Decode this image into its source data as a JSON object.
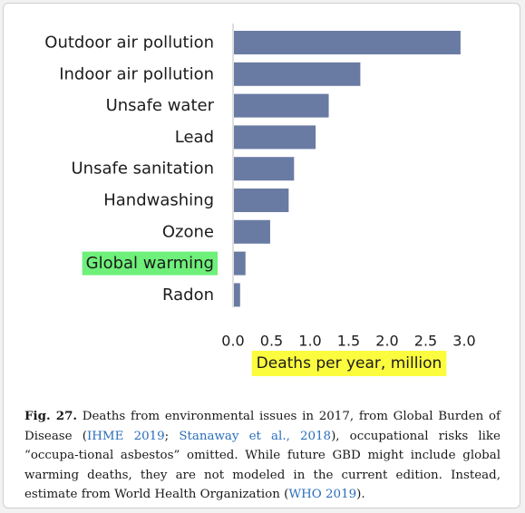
{
  "colors": {
    "bar": "#6a7ba3",
    "highlight_green": "#6ef07a",
    "highlight_yellow": "#fcfc3f",
    "link": "#2a6ebb"
  },
  "chart_data": {
    "type": "bar",
    "orientation": "horizontal",
    "categories": [
      "Outdoor air pollution",
      "Indoor air pollution",
      "Unsafe water",
      "Lead",
      "Unsafe sanitation",
      "Handwashing",
      "Ozone",
      "Global warming",
      "Radon"
    ],
    "values": [
      2.94,
      1.64,
      1.23,
      1.06,
      0.78,
      0.71,
      0.47,
      0.15,
      0.08
    ],
    "highlighted_category": "Global warming",
    "xticks": [
      "0.0",
      "0.5",
      "1.0",
      "1.5",
      "2.0",
      "2.5",
      "3.0"
    ],
    "xlim": [
      0,
      3.0
    ],
    "xlabel": "Deaths per year, million",
    "grid": false
  },
  "caption": {
    "label": "Fig. 27.",
    "text_1": " Deaths from environmental issues in 2017, from Global Burden of Disease (",
    "ref_1": "IHME 2019",
    "sep_1": "; ",
    "ref_2": "Stanaway et al., 2018",
    "text_2": "), occupational risks like “occupa-tional asbestos” omitted. While future GBD might include global warming deaths, they are not modeled in the current edition. Instead, estimate from World Health Organization (",
    "ref_3": "WHO 2019",
    "text_3": ")."
  }
}
